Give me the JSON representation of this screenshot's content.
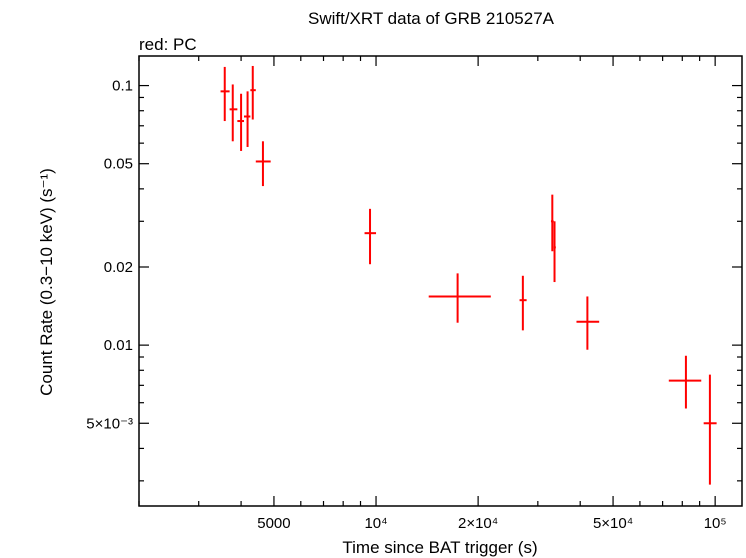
{
  "chart_data": {
    "type": "scatter",
    "title": "Swift/XRT data of GRB 210527A",
    "subtitle": "red: PC",
    "xlabel": "Time since BAT trigger (s)",
    "ylabel": "Count Rate (0.3−10 keV) (s⁻¹)",
    "x_scale": "log",
    "y_scale": "log",
    "xlim": [
      2000,
      120000
    ],
    "ylim": [
      0.0024,
      0.13
    ],
    "grid": false,
    "x_ticks": [
      {
        "value": 5000,
        "label": "5000"
      },
      {
        "value": 10000,
        "label": "10⁴"
      },
      {
        "value": 20000,
        "label": "2×10⁴"
      },
      {
        "value": 50000,
        "label": "5×10⁴"
      },
      {
        "value": 100000,
        "label": "10⁵"
      }
    ],
    "y_ticks": [
      {
        "value": 0.1,
        "label": "0.1"
      },
      {
        "value": 0.05,
        "label": "0.05"
      },
      {
        "value": 0.02,
        "label": "0.02"
      },
      {
        "value": 0.01,
        "label": "0.01"
      },
      {
        "value": 0.005,
        "label": "5×10⁻³"
      }
    ],
    "series": [
      {
        "color": "#ff0000",
        "points": [
          {
            "x": 3580,
            "xlo": 3480,
            "xhi": 3700,
            "y": 0.095,
            "ylo": 0.073,
            "yhi": 0.118
          },
          {
            "x": 3780,
            "xlo": 3700,
            "xhi": 3900,
            "y": 0.081,
            "ylo": 0.061,
            "yhi": 0.101
          },
          {
            "x": 4000,
            "xlo": 3900,
            "xhi": 4080,
            "y": 0.073,
            "ylo": 0.056,
            "yhi": 0.093
          },
          {
            "x": 4180,
            "xlo": 4080,
            "xhi": 4260,
            "y": 0.076,
            "ylo": 0.058,
            "yhi": 0.095
          },
          {
            "x": 4330,
            "xlo": 4260,
            "xhi": 4420,
            "y": 0.096,
            "ylo": 0.074,
            "yhi": 0.119
          },
          {
            "x": 4640,
            "xlo": 4420,
            "xhi": 4890,
            "y": 0.051,
            "ylo": 0.041,
            "yhi": 0.061
          },
          {
            "x": 9600,
            "xlo": 9250,
            "xhi": 10000,
            "y": 0.027,
            "ylo": 0.0205,
            "yhi": 0.0335
          },
          {
            "x": 17400,
            "xlo": 14300,
            "xhi": 21800,
            "y": 0.0154,
            "ylo": 0.0122,
            "yhi": 0.0189
          },
          {
            "x": 27100,
            "xlo": 26500,
            "xhi": 27800,
            "y": 0.0149,
            "ylo": 0.0114,
            "yhi": 0.0185
          },
          {
            "x": 33100,
            "xlo": 32800,
            "xhi": 33400,
            "y": 0.03,
            "ylo": 0.023,
            "yhi": 0.038
          },
          {
            "x": 33600,
            "xlo": 33350,
            "xhi": 33900,
            "y": 0.0238,
            "ylo": 0.0175,
            "yhi": 0.03
          },
          {
            "x": 42000,
            "xlo": 39000,
            "xhi": 45500,
            "y": 0.0123,
            "ylo": 0.0096,
            "yhi": 0.0154
          },
          {
            "x": 82000,
            "xlo": 73000,
            "xhi": 91000,
            "y": 0.0073,
            "ylo": 0.0057,
            "yhi": 0.0091
          },
          {
            "x": 96500,
            "xlo": 92500,
            "xhi": 101000,
            "y": 0.005,
            "ylo": 0.0029,
            "yhi": 0.0077
          }
        ]
      }
    ]
  }
}
